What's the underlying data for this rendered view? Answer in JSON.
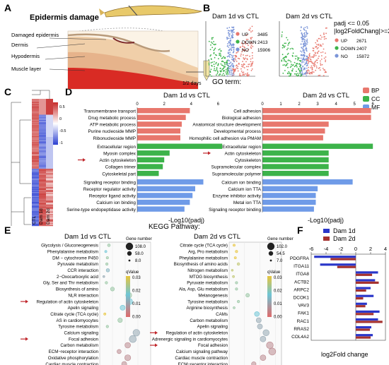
{
  "panels": {
    "a": "A",
    "b": "B",
    "c": "C",
    "d": "D",
    "e": "E",
    "f": "F"
  },
  "panelA": {
    "title": "Epidermis damage",
    "labels": [
      "Damaged epidermis",
      "Dermis",
      "Hypodermis",
      "Muscle layer"
    ],
    "time": "1/2 days"
  },
  "panelB": {
    "plots": [
      {
        "title": "Dam 1d vs CTL",
        "legend": [
          {
            "label": "UP",
            "value": "3485",
            "color": "#e8776d"
          },
          {
            "label": "DOWN",
            "value": "2413",
            "color": "#3cb34a"
          },
          {
            "label": "NO",
            "value": "15906",
            "color": "#7b95d8"
          }
        ]
      },
      {
        "title": "Dam 2d vs CTL",
        "legend": [
          {
            "label": "UP",
            "value": "2671",
            "color": "#e8776d"
          },
          {
            "label": "DOWN",
            "value": "2407",
            "color": "#3cb34a"
          },
          {
            "label": "NO",
            "value": "15872",
            "color": "#7b95d8"
          }
        ]
      }
    ],
    "criteria": [
      "padj <= 0.05",
      "|log2FoldChang|>=2"
    ]
  },
  "panelC": {
    "columns": [
      "CTL",
      "Dam 1d",
      "Dam 2d"
    ],
    "scale": [
      "0.5",
      "0",
      "-0.5",
      "-1"
    ]
  },
  "panelD": {
    "heading": "GO term:",
    "xlabel": "-Log10(padj)",
    "legend": [
      {
        "label": "BP",
        "color": "#e8776d"
      },
      {
        "label": "CC",
        "color": "#3cb34a"
      },
      {
        "label": "MF",
        "color": "#6f9be8"
      }
    ],
    "highlight": "Actin cytoskeleton",
    "charts": [
      {
        "title": "Dam 1d vs CTL",
        "ticks": [
          "0",
          "2",
          "4",
          "6"
        ],
        "xmax": 6.5,
        "terms": [
          {
            "label": "Transmembrane transport",
            "value": 3.9,
            "cat": "BP"
          },
          {
            "label": "Drug metabolic process",
            "value": 3.6,
            "cat": "BP"
          },
          {
            "label": "ATP metabolic process",
            "value": 3.3,
            "cat": "BP"
          },
          {
            "label": "Purine nucleoside MMP",
            "value": 3.2,
            "cat": "BP"
          },
          {
            "label": "Ribonucleoside MMP",
            "value": 3.2,
            "cat": "BP"
          },
          {
            "label": "Extracellular region",
            "value": 6.3,
            "cat": "CC"
          },
          {
            "label": "Myosin complex",
            "value": 2.4,
            "cat": "CC"
          },
          {
            "label": "Actin cytoskeleton",
            "value": 2.0,
            "cat": "CC"
          },
          {
            "label": "Collagen trimer",
            "value": 1.9,
            "cat": "CC"
          },
          {
            "label": "Cytoskeletal part",
            "value": 1.6,
            "cat": "CC"
          },
          {
            "label": "Signaling receptor binding",
            "value": 4.9,
            "cat": "MF"
          },
          {
            "label": "Receptor regulator activity",
            "value": 4.3,
            "cat": "MF"
          },
          {
            "label": "Receptor ligand activity",
            "value": 4.1,
            "cat": "MF"
          },
          {
            "label": "Calcium ion binding",
            "value": 3.9,
            "cat": "MF"
          },
          {
            "label": "Serine-type endopeptidase activity",
            "value": 3.5,
            "cat": "MF"
          }
        ]
      },
      {
        "title": "Dam 2d vs CTL",
        "ticks": [
          "0",
          "1",
          "2",
          "3",
          "4",
          "5",
          "6"
        ],
        "xmax": 6.3,
        "terms": [
          {
            "label": "Cell adhesion",
            "value": 5.9,
            "cat": "BP"
          },
          {
            "label": "Biological adhesion",
            "value": 5.9,
            "cat": "BP"
          },
          {
            "label": "Anatomical structure development",
            "value": 3.6,
            "cat": "BP"
          },
          {
            "label": "Developmental process",
            "value": 3.4,
            "cat": "BP"
          },
          {
            "label": "Homophilic cell adhesion via PMAM",
            "value": 3.3,
            "cat": "BP"
          },
          {
            "label": "Extracellular region",
            "value": 6.0,
            "cat": "CC"
          },
          {
            "label": "Actin cytoskeleton",
            "value": 3.6,
            "cat": "CC"
          },
          {
            "label": "Cytoskeleton",
            "value": 3.6,
            "cat": "CC"
          },
          {
            "label": "Supramolecular complex",
            "value": 3.6,
            "cat": "CC"
          },
          {
            "label": "Supramolecular polymer",
            "value": 3.6,
            "cat": "CC"
          },
          {
            "label": "Calcium ion binding",
            "value": 4.9,
            "cat": "MF"
          },
          {
            "label": "Calcium ion TTA",
            "value": 3.0,
            "cat": "MF"
          },
          {
            "label": "Enzyme inhibitor activity",
            "value": 2.9,
            "cat": "MF"
          },
          {
            "label": "Metal ion TTA",
            "value": 2.9,
            "cat": "MF"
          },
          {
            "label": "Signaling receptor binding",
            "value": 2.8,
            "cat": "MF"
          }
        ]
      }
    ]
  },
  "panelE": {
    "heading": "KEGG Pathway:",
    "xlabel": "gene ratio",
    "sizeTitle": "Gene number",
    "qTitle": "qValue",
    "charts": [
      {
        "title": "Dam 1d vs CTL",
        "ticks": [
          "0",
          "0.025",
          "0.05",
          "0.075",
          "0.1"
        ],
        "xmax": 0.1,
        "sizeLegend": [
          "108.0",
          "58.0",
          "8.0"
        ],
        "qLegend": [
          "0.03",
          "0.02",
          "0.01",
          "0.00"
        ],
        "highlights": [
          "Regulation of actin cytoskeleton",
          "Focal adhesion"
        ],
        "rows": [
          {
            "label": "Glycolysis / Gluconeogenesis",
            "x": 0.018,
            "size": 0.2,
            "q": 0.02
          },
          {
            "label": "Phenylalanine metabolism",
            "x": 0.012,
            "size": 0.1,
            "q": 0.015
          },
          {
            "label": "DM − cytochrome P450",
            "x": 0.015,
            "size": 0.12,
            "q": 0.02
          },
          {
            "label": "Pyruvate metabolism",
            "x": 0.014,
            "size": 0.15,
            "q": 0.02
          },
          {
            "label": "CCR interaction",
            "x": 0.016,
            "size": 0.3,
            "q": 0.012
          },
          {
            "label": "2−Oxocarboxylic acid",
            "x": 0.008,
            "size": 0.05,
            "q": 0.01
          },
          {
            "label": "Gly, Ser and Thr metabolism",
            "x": 0.013,
            "size": 0.15,
            "q": 0.02
          },
          {
            "label": "Biosynthesis of amino",
            "x": 0.025,
            "size": 0.4,
            "q": 0.02
          },
          {
            "label": "NLR interaction",
            "x": 0.057,
            "size": 0.75,
            "q": 0.02
          },
          {
            "label": "Regulation of actin cytoskeleton",
            "x": 0.058,
            "size": 0.85,
            "q": 0.015
          },
          {
            "label": "Apelin signaling",
            "x": 0.045,
            "size": 0.6,
            "q": 0.015
          },
          {
            "label": "Citrate cycle (TCA cycle)",
            "x": 0.01,
            "size": 0.1,
            "q": 0.03
          },
          {
            "label": "AS in cardiomyocytes",
            "x": 0.04,
            "size": 0.5,
            "q": 0.02
          },
          {
            "label": "Tyrosine metabolism",
            "x": 0.015,
            "size": 0.15,
            "q": 0.02
          },
          {
            "label": "Calcium signaling",
            "x": 0.072,
            "size": 0.9,
            "q": 0.01
          },
          {
            "label": "Focal adhesion",
            "x": 0.065,
            "size": 0.95,
            "q": 0.01
          },
          {
            "label": "Carbon metabolism",
            "x": 0.055,
            "size": 0.7,
            "q": 0.005
          },
          {
            "label": "ECM−receptor interaction",
            "x": 0.038,
            "size": 0.45,
            "q": 0.005
          },
          {
            "label": "Oxidative phosphorylation",
            "x": 0.055,
            "size": 0.75,
            "q": 0.005
          },
          {
            "label": "Cardiac muscle contraction",
            "x": 0.048,
            "size": 0.6,
            "q": 0.005
          }
        ]
      },
      {
        "title": "Dam 2d vs CTL",
        "ticks": [
          "0",
          "0.025",
          "0.05",
          "0.075"
        ],
        "xmax": 0.085,
        "sizeLegend": [
          "102.0",
          "54.5",
          "7.0"
        ],
        "qLegend": [
          "0.03",
          "0.02",
          "0.01",
          "0.00"
        ],
        "highlights": [
          "Regulation of actin cytoskeleton",
          "Focal adhesion"
        ],
        "rows": [
          {
            "label": "Citrate cycle (TCA cycle)",
            "x": 0.008,
            "size": 0.1,
            "q": 0.03
          },
          {
            "label": "Arg, Pro metabolism",
            "x": 0.012,
            "size": 0.12,
            "q": 0.03
          },
          {
            "label": "Pheylalanine metabolism",
            "x": 0.01,
            "size": 0.1,
            "q": 0.03
          },
          {
            "label": "Biosynthesis of amino acids",
            "x": 0.015,
            "size": 0.18,
            "q": 0.025
          },
          {
            "label": "Nitrogen metabolism",
            "x": 0.005,
            "size": 0.06,
            "q": 0.025
          },
          {
            "label": "MTOG biosynthesis",
            "x": 0.007,
            "size": 0.08,
            "q": 0.025
          },
          {
            "label": "Pyruvate metabolism",
            "x": 0.012,
            "size": 0.12,
            "q": 0.02
          },
          {
            "label": "Ala, Asp, Glu metabolism",
            "x": 0.012,
            "size": 0.12,
            "q": 0.02
          },
          {
            "label": "Melanogenesis",
            "x": 0.03,
            "size": 0.35,
            "q": 0.02
          },
          {
            "label": "Tyrosine metabolism",
            "x": 0.015,
            "size": 0.15,
            "q": 0.02
          },
          {
            "label": "Arginine biosynthesis",
            "x": 0.008,
            "size": 0.08,
            "q": 0.02
          },
          {
            "label": "CAMs",
            "x": 0.045,
            "size": 0.55,
            "q": 0.015
          },
          {
            "label": "Carbon metabolism",
            "x": 0.048,
            "size": 0.6,
            "q": 0.01
          },
          {
            "label": "Apelin signaling",
            "x": 0.05,
            "size": 0.6,
            "q": 0.01
          },
          {
            "label": "Regulation of actin cytoskeleton",
            "x": 0.06,
            "size": 0.8,
            "q": 0.01
          },
          {
            "label": "Adrenergic signaling in cardiomyocytes",
            "x": 0.055,
            "size": 0.7,
            "q": 0.01
          },
          {
            "label": "Focal adhesion",
            "x": 0.066,
            "size": 0.9,
            "q": 0.005
          },
          {
            "label": "Calcium signaling pathway",
            "x": 0.07,
            "size": 0.95,
            "q": 0.005
          },
          {
            "label": "Cardiac muscle contraction",
            "x": 0.055,
            "size": 0.7,
            "q": 0.005
          },
          {
            "label": "ECM−receptor interaction",
            "x": 0.04,
            "size": 0.5,
            "q": 0.005
          }
        ]
      }
    ]
  },
  "chart_data": {
    "type": "bar",
    "xlabel": "log2Fold change",
    "xlim": [
      -6,
      4
    ],
    "ticks": [
      "-6",
      "-4",
      "-2",
      "0",
      "2",
      "4"
    ],
    "categories": [
      "PDGFRA",
      "ITGA11",
      "ITGA8",
      "ACTB2",
      "ARPC2",
      "DCOK1",
      "VAV3",
      "FAK1",
      "RAC1",
      "RRAS2",
      "COL4A2"
    ],
    "series": [
      {
        "name": "Dam 1d",
        "color": "#2a36c9",
        "values": [
          -5.6,
          -4.8,
          3.0,
          2.6,
          2.0,
          2.4,
          1.5,
          3.2,
          3.0,
          2.1,
          2.3
        ]
      },
      {
        "name": "Dam 2d",
        "color": "#a5322f",
        "values": [
          -3.4,
          -2.5,
          2.2,
          3.1,
          1.4,
          1.0,
          1.3,
          2.4,
          3.6,
          1.9,
          2.0
        ]
      }
    ]
  }
}
